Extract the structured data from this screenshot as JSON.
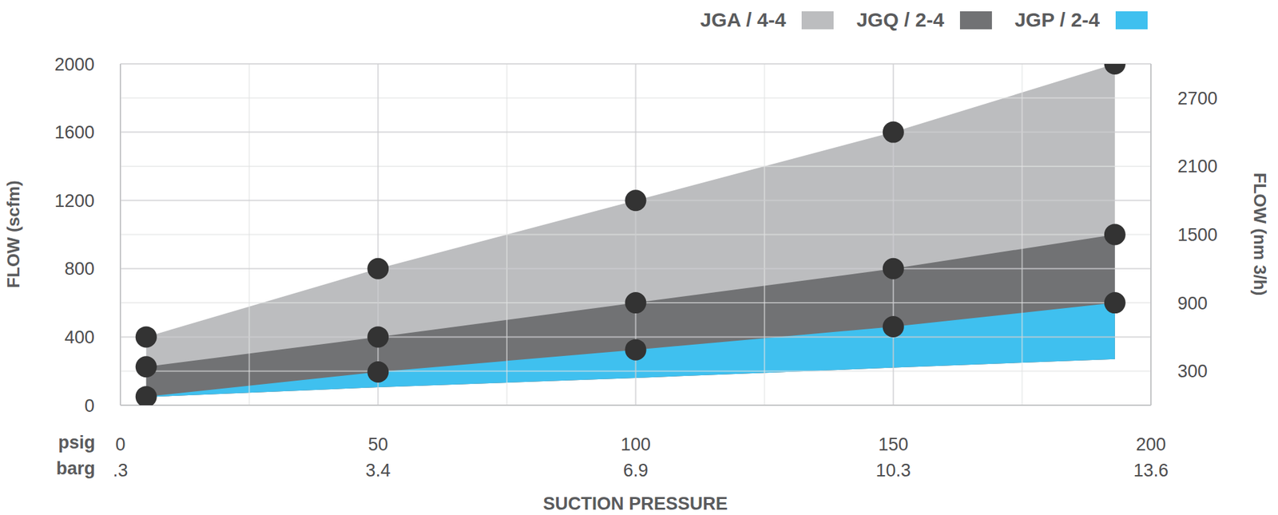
{
  "chart_data": {
    "type": "area",
    "x_label": "SUCTION PRESSURE",
    "y_label": "FLOW (scfm)",
    "y2_label": "FLOW (nm 3/h)",
    "x_units": [
      "psig",
      "barg"
    ],
    "x": [
      5,
      50,
      100,
      150,
      193
    ],
    "xlim": [
      0,
      200
    ],
    "xticks": [
      0,
      50,
      100,
      150,
      200
    ],
    "xtick_labels_barg": [
      ".3",
      "3.4",
      "6.9",
      "10.3",
      "13.6"
    ],
    "minor_xticks": [
      25,
      75,
      125,
      175
    ],
    "ylim": [
      0,
      2000
    ],
    "yticks": [
      0,
      400,
      800,
      1200,
      1600,
      2000
    ],
    "minor_yticks": [
      200,
      600,
      1000,
      1400,
      1800
    ],
    "y2lim": [
      0,
      3000
    ],
    "y2ticks": [
      300,
      900,
      1500,
      2100,
      2700
    ],
    "grid": true,
    "legend": "top right",
    "series": [
      {
        "name": "JGA / 4-4",
        "color": "#bcbdbf",
        "values": [
          400,
          800,
          1200,
          1600,
          2000
        ],
        "lower": [
          48,
          105,
          160,
          220,
          270
        ],
        "marker": "circle"
      },
      {
        "name": "JGQ / 2-4",
        "color": "#717274",
        "values": [
          225,
          400,
          600,
          800,
          1000
        ],
        "lower": [
          48,
          105,
          160,
          220,
          270
        ],
        "marker": "circle"
      },
      {
        "name": "JGP / 2-4",
        "color": "#3fc0ef",
        "values": [
          50,
          195,
          325,
          460,
          600
        ],
        "lower": [
          48,
          105,
          160,
          220,
          270
        ],
        "marker": "circle"
      }
    ]
  }
}
